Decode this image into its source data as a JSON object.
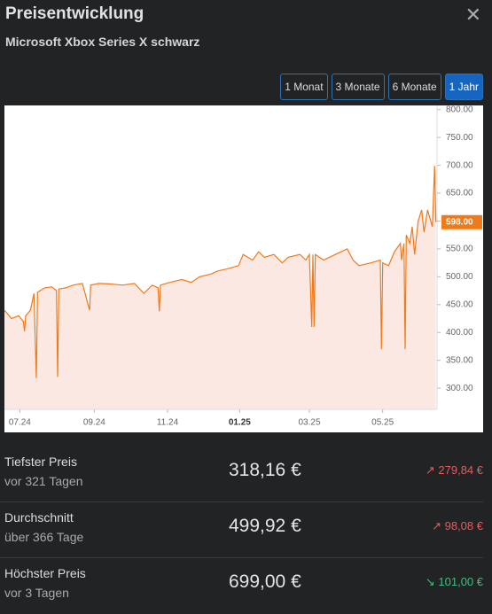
{
  "header": {
    "title": "Preisentwicklung",
    "subtitle": "Microsoft Xbox Series X schwarz"
  },
  "range_buttons": {
    "labels": [
      "1 Monat",
      "3 Monate",
      "6 Monate",
      "1 Jahr"
    ],
    "active": 3
  },
  "chart_data": {
    "type": "area-line",
    "x": [
      0,
      6,
      12,
      16,
      17,
      18,
      22,
      25,
      27,
      28,
      34,
      40,
      44,
      45,
      46,
      52,
      58,
      66,
      72,
      73,
      80,
      90,
      100,
      110,
      118,
      125,
      130,
      131,
      132,
      140,
      150,
      158,
      165,
      175,
      180,
      190,
      198,
      202,
      210,
      215,
      220,
      228,
      235,
      240,
      250,
      255,
      258,
      260,
      261,
      262,
      263,
      270,
      280,
      290,
      295,
      300,
      310,
      318,
      319,
      320,
      325,
      330,
      335,
      336,
      338,
      339,
      340,
      343,
      345,
      347,
      350,
      353,
      355,
      358,
      362,
      364,
      365
    ],
    "series": [
      {
        "name": "Preis",
        "color": "#f07a1a",
        "fill": "#fbe8e3",
        "values": [
          440,
          425,
          430,
          420,
          402,
          430,
          440,
          470,
          318,
          472,
          480,
          482,
          475,
          320,
          478,
          480,
          485,
          488,
          440,
          485,
          488,
          487,
          485,
          488,
          470,
          485,
          480,
          438,
          485,
          490,
          495,
          490,
          500,
          505,
          510,
          515,
          520,
          540,
          530,
          545,
          535,
          540,
          525,
          535,
          540,
          530,
          540,
          410,
          540,
          410,
          540,
          530,
          540,
          550,
          530,
          520,
          525,
          530,
          370,
          525,
          520,
          545,
          560,
          530,
          560,
          370,
          575,
          560,
          590,
          540,
          600,
          620,
          580,
          620,
          590,
          699,
          598
        ]
      }
    ],
    "xlim": [
      0,
      366
    ],
    "ylim": [
      262,
      806
    ],
    "xticks": [
      {
        "value": 13,
        "label": "07.24"
      },
      {
        "value": 76,
        "label": "09.24"
      },
      {
        "value": 138,
        "label": "11.24"
      },
      {
        "value": 199,
        "label": "01.25"
      },
      {
        "value": 258,
        "label": "03.25"
      },
      {
        "value": 320,
        "label": "05.25"
      }
    ],
    "bold_xtick": 3,
    "yticks": [
      {
        "value": 300,
        "label": "300.00"
      },
      {
        "value": 350,
        "label": "350.00"
      },
      {
        "value": 400,
        "label": "400.00"
      },
      {
        "value": 450,
        "label": "450.00"
      },
      {
        "value": 500,
        "label": "500.00"
      },
      {
        "value": 550,
        "label": "550.00"
      },
      {
        "value": 600,
        "label": "600.00"
      },
      {
        "value": 650,
        "label": "650.00"
      },
      {
        "value": 700,
        "label": "700.00"
      },
      {
        "value": 750,
        "label": "750.00"
      },
      {
        "value": 800,
        "label": "800.00"
      }
    ],
    "current": {
      "value": 598,
      "label": "598.00"
    }
  },
  "stats": [
    {
      "label": "Tiefster Preis",
      "sublabel": "vor 321 Tagen",
      "value": "318,16 €",
      "change": "↗ 279,84 €",
      "color": "#e35d5d"
    },
    {
      "label": "Durchschnitt",
      "sublabel": "über 366 Tage",
      "value": "499,92 €",
      "change": "↗ 98,08 €",
      "color": "#e35d5d"
    },
    {
      "label": "Höchster Preis",
      "sublabel": "vor 3 Tagen",
      "value": "699,00 €",
      "change": "↘ 101,00 €",
      "color": "#3fbf7f"
    }
  ]
}
